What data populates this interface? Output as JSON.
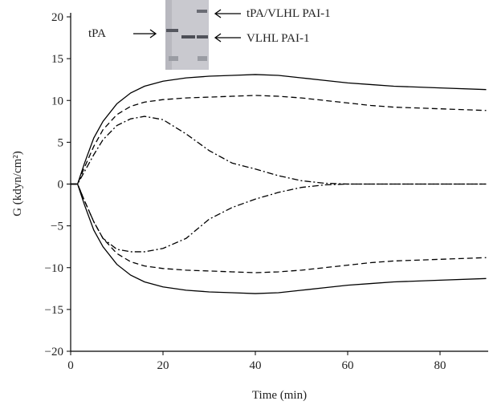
{
  "chart_data": {
    "type": "line",
    "xlabel": "Time (min)",
    "ylabel": "G (kdyn/cm²)",
    "annotations": [
      "tPA",
      "tPA/VLHL PAI-1",
      "VLHL PAI-1"
    ],
    "x": [
      0,
      1.5,
      3,
      5,
      7,
      10,
      13,
      16,
      20,
      25,
      30,
      35,
      40,
      45,
      50,
      55,
      60,
      65,
      70,
      80,
      90
    ],
    "series": [
      {
        "color": "#000000",
        "dash": "solid",
        "values": [
          0,
          0,
          2.5,
          5.5,
          7.5,
          9.6,
          10.9,
          11.7,
          12.3,
          12.7,
          12.9,
          13.0,
          13.1,
          13.0,
          12.7,
          12.4,
          12.1,
          11.9,
          11.7,
          11.5,
          11.3
        ]
      },
      {
        "color": "#000000",
        "dash": "dashed",
        "values": [
          0,
          0,
          2,
          4.5,
          6.5,
          8.3,
          9.3,
          9.8,
          10.1,
          10.3,
          10.4,
          10.5,
          10.6,
          10.5,
          10.3,
          10.0,
          9.7,
          9.4,
          9.2,
          9.0,
          8.8
        ]
      },
      {
        "color": "#000000",
        "dash": "dashdot",
        "values": [
          0,
          0,
          1.5,
          3.5,
          5.3,
          7.0,
          7.8,
          8.1,
          7.7,
          6.0,
          4.0,
          2.5,
          1.8,
          1.0,
          0.4,
          0.1,
          0,
          0,
          0,
          0,
          0
        ]
      },
      {
        "color": "#000000",
        "dash": "dashdot",
        "values": [
          0,
          0,
          -2,
          -4.5,
          -6.5,
          -7.8,
          -8.1,
          -8.1,
          -7.7,
          -6.5,
          -4.2,
          -2.8,
          -1.8,
          -1.0,
          -0.4,
          -0.1,
          0,
          0,
          0,
          0,
          0
        ]
      },
      {
        "color": "#000000",
        "dash": "dashed",
        "values": [
          0,
          0,
          -2,
          -4.5,
          -6.5,
          -8.3,
          -9.3,
          -9.8,
          -10.1,
          -10.3,
          -10.4,
          -10.5,
          -10.6,
          -10.5,
          -10.3,
          -10.0,
          -9.7,
          -9.4,
          -9.2,
          -9.0,
          -8.8
        ]
      },
      {
        "color": "#000000",
        "dash": "solid",
        "values": [
          0,
          0,
          -2.5,
          -5.5,
          -7.5,
          -9.6,
          -10.9,
          -11.7,
          -12.3,
          -12.7,
          -12.9,
          -13.0,
          -13.1,
          -13.0,
          -12.7,
          -12.4,
          -12.1,
          -11.9,
          -11.7,
          -11.5,
          -11.3
        ]
      }
    ],
    "xlim": [
      0,
      90
    ],
    "xticks": [
      0,
      20,
      40,
      60,
      80
    ],
    "ylim": [
      -20,
      20
    ],
    "yticks": [
      20,
      15,
      10,
      5,
      0,
      {
        "value": -5,
        "label": "−5"
      },
      {
        "value": -10,
        "label": "−10"
      },
      {
        "value": -15,
        "label": "−15"
      },
      {
        "value": -20,
        "label": "−20"
      }
    ]
  }
}
